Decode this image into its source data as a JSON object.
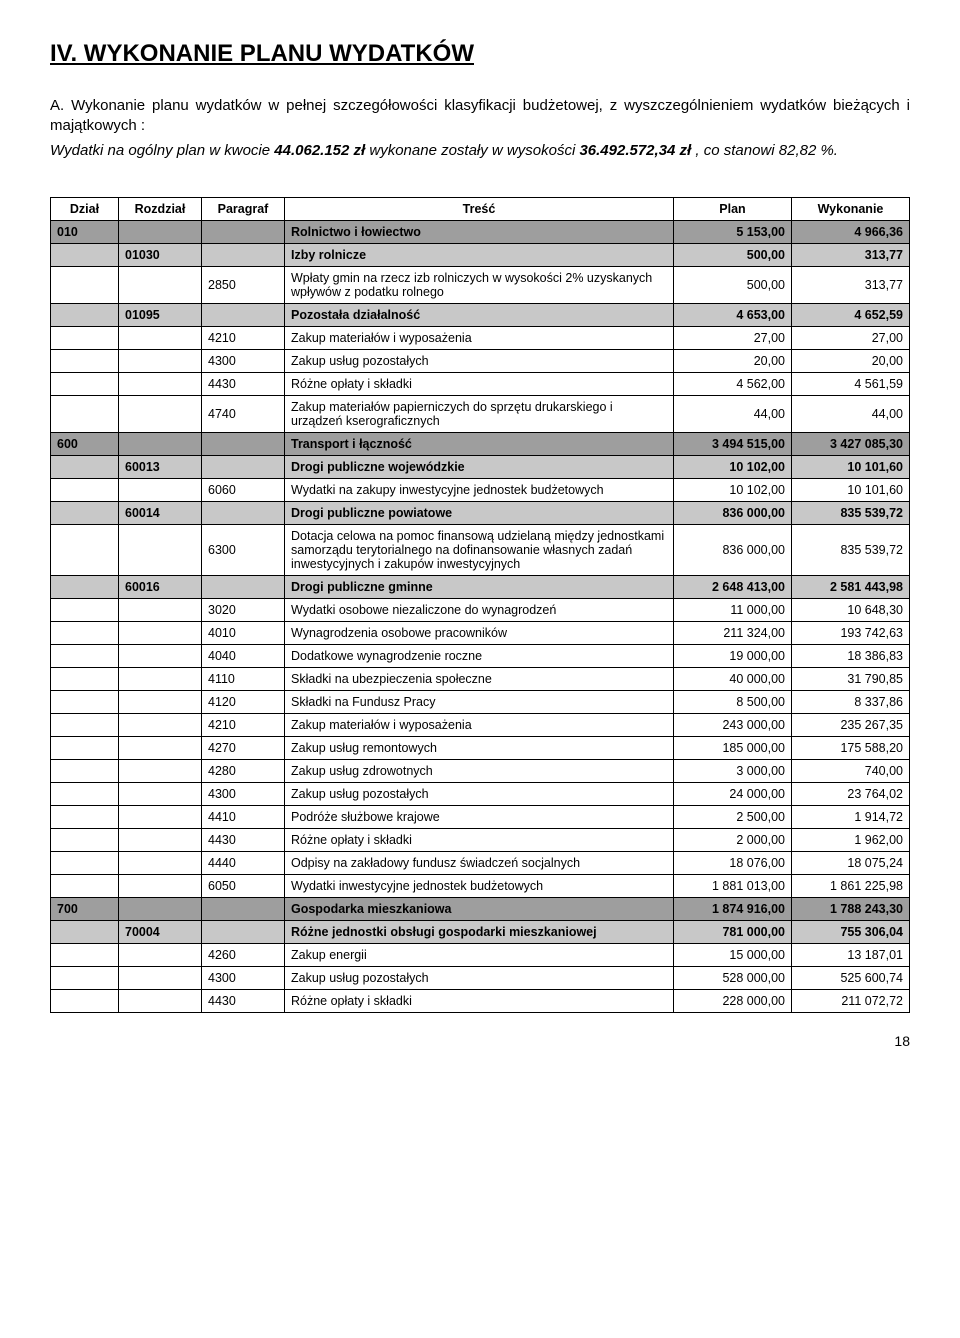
{
  "heading": "IV. WYKONANIE  PLANU  WYDATKÓW",
  "intro": {
    "line1": "A. Wykonanie planu wydatków w pełnej szczegółowości klasyfikacji budżetowej, z wyszczególnieniem wydatków bieżących i majątkowych :",
    "line2_prefix": "Wydatki na ogólny plan w kwocie ",
    "line2_bold1": "44.062.152 zł",
    "line2_mid": " wykonane zostały w wysokości ",
    "line2_bold2": "36.492.572,34 zł",
    "line2_suffix": " , co stanowi 82,82 %."
  },
  "columns": [
    "Dział",
    "Rozdział",
    "Paragraf",
    "Treść",
    "Plan",
    "Wykonanie"
  ],
  "rows": [
    {
      "shade": "dark",
      "dzial": "010",
      "rozdzial": "",
      "paragraf": "",
      "tresc": "Rolnictwo i łowiectwo",
      "plan": "5 153,00",
      "wyk": "4 966,36"
    },
    {
      "shade": "med",
      "dzial": "",
      "rozdzial": "01030",
      "paragraf": "",
      "tresc": "Izby rolnicze",
      "plan": "500,00",
      "wyk": "313,77"
    },
    {
      "shade": "light",
      "dzial": "",
      "rozdzial": "",
      "paragraf": "2850",
      "tresc": "Wpłaty gmin na rzecz izb rolniczych w wysokości 2% uzyskanych wpływów z podatku rolnego",
      "plan": "500,00",
      "wyk": "313,77"
    },
    {
      "shade": "med",
      "dzial": "",
      "rozdzial": "01095",
      "paragraf": "",
      "tresc": "Pozostała działalność",
      "plan": "4 653,00",
      "wyk": "4 652,59"
    },
    {
      "shade": "light",
      "dzial": "",
      "rozdzial": "",
      "paragraf": "4210",
      "tresc": "Zakup materiałów i wyposażenia",
      "plan": "27,00",
      "wyk": "27,00"
    },
    {
      "shade": "light",
      "dzial": "",
      "rozdzial": "",
      "paragraf": "4300",
      "tresc": "Zakup usług pozostałych",
      "plan": "20,00",
      "wyk": "20,00"
    },
    {
      "shade": "light",
      "dzial": "",
      "rozdzial": "",
      "paragraf": "4430",
      "tresc": "Różne opłaty i składki",
      "plan": "4 562,00",
      "wyk": "4 561,59"
    },
    {
      "shade": "light",
      "dzial": "",
      "rozdzial": "",
      "paragraf": "4740",
      "tresc": "Zakup materiałów papierniczych do sprzętu drukarskiego i urządzeń kserograficznych",
      "plan": "44,00",
      "wyk": "44,00"
    },
    {
      "shade": "dark",
      "dzial": "600",
      "rozdzial": "",
      "paragraf": "",
      "tresc": "Transport i łączność",
      "plan": "3 494 515,00",
      "wyk": "3 427 085,30"
    },
    {
      "shade": "med",
      "dzial": "",
      "rozdzial": "60013",
      "paragraf": "",
      "tresc": "Drogi publiczne wojewódzkie",
      "plan": "10 102,00",
      "wyk": "10 101,60"
    },
    {
      "shade": "light",
      "dzial": "",
      "rozdzial": "",
      "paragraf": "6060",
      "tresc": "Wydatki na zakupy inwestycyjne jednostek budżetowych",
      "plan": "10 102,00",
      "wyk": "10 101,60"
    },
    {
      "shade": "med",
      "dzial": "",
      "rozdzial": "60014",
      "paragraf": "",
      "tresc": "Drogi publiczne powiatowe",
      "plan": "836 000,00",
      "wyk": "835 539,72"
    },
    {
      "shade": "light",
      "dzial": "",
      "rozdzial": "",
      "paragraf": "6300",
      "tresc": "Dotacja celowa na pomoc finansową udzielaną między jednostkami samorządu terytorialnego na dofinansowanie własnych zadań inwestycyjnych i zakupów inwestycyjnych",
      "plan": "836 000,00",
      "wyk": "835 539,72"
    },
    {
      "shade": "med",
      "dzial": "",
      "rozdzial": "60016",
      "paragraf": "",
      "tresc": "Drogi publiczne gminne",
      "plan": "2 648 413,00",
      "wyk": "2 581 443,98"
    },
    {
      "shade": "light",
      "dzial": "",
      "rozdzial": "",
      "paragraf": "3020",
      "tresc": "Wydatki osobowe niezaliczone do wynagrodzeń",
      "plan": "11 000,00",
      "wyk": "10 648,30"
    },
    {
      "shade": "light",
      "dzial": "",
      "rozdzial": "",
      "paragraf": "4010",
      "tresc": "Wynagrodzenia osobowe pracowników",
      "plan": "211 324,00",
      "wyk": "193 742,63"
    },
    {
      "shade": "light",
      "dzial": "",
      "rozdzial": "",
      "paragraf": "4040",
      "tresc": "Dodatkowe wynagrodzenie roczne",
      "plan": "19 000,00",
      "wyk": "18 386,83"
    },
    {
      "shade": "light",
      "dzial": "",
      "rozdzial": "",
      "paragraf": "4110",
      "tresc": "Składki na ubezpieczenia społeczne",
      "plan": "40 000,00",
      "wyk": "31 790,85"
    },
    {
      "shade": "light",
      "dzial": "",
      "rozdzial": "",
      "paragraf": "4120",
      "tresc": "Składki na Fundusz Pracy",
      "plan": "8 500,00",
      "wyk": "8 337,86"
    },
    {
      "shade": "light",
      "dzial": "",
      "rozdzial": "",
      "paragraf": "4210",
      "tresc": "Zakup materiałów i wyposażenia",
      "plan": "243 000,00",
      "wyk": "235 267,35"
    },
    {
      "shade": "light",
      "dzial": "",
      "rozdzial": "",
      "paragraf": "4270",
      "tresc": "Zakup usług remontowych",
      "plan": "185 000,00",
      "wyk": "175 588,20"
    },
    {
      "shade": "light",
      "dzial": "",
      "rozdzial": "",
      "paragraf": "4280",
      "tresc": "Zakup usług zdrowotnych",
      "plan": "3 000,00",
      "wyk": "740,00"
    },
    {
      "shade": "light",
      "dzial": "",
      "rozdzial": "",
      "paragraf": "4300",
      "tresc": "Zakup usług pozostałych",
      "plan": "24 000,00",
      "wyk": "23 764,02"
    },
    {
      "shade": "light",
      "dzial": "",
      "rozdzial": "",
      "paragraf": "4410",
      "tresc": "Podróże służbowe krajowe",
      "plan": "2 500,00",
      "wyk": "1 914,72"
    },
    {
      "shade": "light",
      "dzial": "",
      "rozdzial": "",
      "paragraf": "4430",
      "tresc": "Różne opłaty i składki",
      "plan": "2 000,00",
      "wyk": "1 962,00"
    },
    {
      "shade": "light",
      "dzial": "",
      "rozdzial": "",
      "paragraf": "4440",
      "tresc": "Odpisy na zakładowy fundusz świadczeń socjalnych",
      "plan": "18 076,00",
      "wyk": "18 075,24"
    },
    {
      "shade": "light",
      "dzial": "",
      "rozdzial": "",
      "paragraf": "6050",
      "tresc": "Wydatki inwestycyjne jednostek budżetowych",
      "plan": "1 881 013,00",
      "wyk": "1 861 225,98"
    },
    {
      "shade": "dark",
      "dzial": "700",
      "rozdzial": "",
      "paragraf": "",
      "tresc": "Gospodarka mieszkaniowa",
      "plan": "1 874 916,00",
      "wyk": "1 788 243,30"
    },
    {
      "shade": "med",
      "dzial": "",
      "rozdzial": "70004",
      "paragraf": "",
      "tresc": "Różne jednostki obsługi gospodarki mieszkaniowej",
      "plan": "781 000,00",
      "wyk": "755 306,04"
    },
    {
      "shade": "light",
      "dzial": "",
      "rozdzial": "",
      "paragraf": "4260",
      "tresc": "Zakup energii",
      "plan": "15 000,00",
      "wyk": "13 187,01"
    },
    {
      "shade": "light",
      "dzial": "",
      "rozdzial": "",
      "paragraf": "4300",
      "tresc": "Zakup usług pozostałych",
      "plan": "528 000,00",
      "wyk": "525 600,74"
    },
    {
      "shade": "light",
      "dzial": "",
      "rozdzial": "",
      "paragraf": "4430",
      "tresc": "Różne opłaty i składki",
      "plan": "228 000,00",
      "wyk": "211 072,72"
    }
  ],
  "page_number": "18"
}
